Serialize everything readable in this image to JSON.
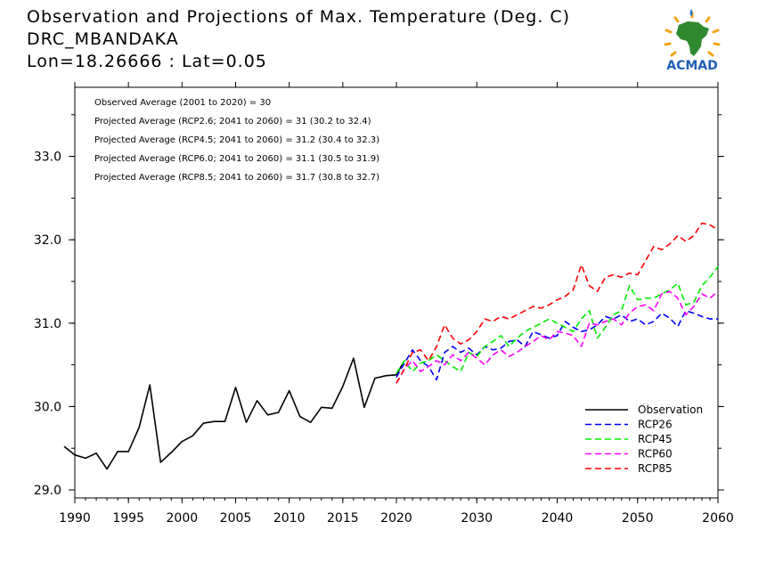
{
  "header": {
    "title": "Observation and Projections of Max. Temperature (Deg. C)",
    "station": "DRC_MBANDAKA",
    "coords": "Lon=18.26666 : Lat=0.05"
  },
  "logo": {
    "text": "ACMAD",
    "icon": "africa-map-icon"
  },
  "colors": {
    "observation": "#000000",
    "rcp26": "#0000ff",
    "rcp45": "#00ee00",
    "rcp60": "#ff00ff",
    "rcp85": "#ff0000"
  },
  "chart_data": {
    "type": "line",
    "annotations": [
      "Observed Average (2001 to 2020) = 30",
      "Projected Average (RCP2.6; 2041 to 2060) = 31 (30.2 to 32.4)",
      "Projected Average (RCP4.5; 2041 to 2060) = 31.2 (30.4 to 32.3)",
      "Projected Average (RCP6.0; 2041 to 2060) = 31.1 (30.5 to 31.9)",
      "Projected Average (RCP8.5; 2041 to 2060) = 31.7 (30.8 to 32.7)"
    ],
    "xlim": [
      1989,
      2060
    ],
    "ylim": [
      28.9,
      33.8
    ],
    "x_tick_labels": [
      "1990",
      "1995",
      "2000",
      "2005",
      "2010",
      "2015",
      "2020",
      "2030",
      "2040",
      "2050",
      "2060"
    ],
    "y_tick_labels": [
      "29.0",
      "30.0",
      "31.0",
      "32.0",
      "33.0"
    ],
    "legend_position": "bottom-right",
    "series": [
      {
        "name": "Observation",
        "style": "solid",
        "color": "#000000",
        "x": [
          1989,
          1990,
          1991,
          1992,
          1993,
          1994,
          1995,
          1996,
          1997,
          1998,
          1999,
          2000,
          2001,
          2002,
          2003,
          2004,
          2005,
          2006,
          2007,
          2008,
          2009,
          2010,
          2011,
          2012,
          2013,
          2014,
          2015,
          2016,
          2017,
          2018,
          2019,
          2020,
          2021
        ],
        "y": [
          29.52,
          29.42,
          29.38,
          29.44,
          29.25,
          29.46,
          29.46,
          29.75,
          30.26,
          29.33,
          29.45,
          29.58,
          29.65,
          29.8,
          29.82,
          29.82,
          30.23,
          29.81,
          30.07,
          29.9,
          29.93,
          30.19,
          29.88,
          29.81,
          29.99,
          29.98,
          30.24,
          30.58,
          29.99,
          30.34,
          30.37,
          30.38,
          30.55
        ]
      },
      {
        "name": "RCP26",
        "style": "dashed",
        "color": "#0000ff",
        "x": [
          2020,
          2021,
          2022,
          2023,
          2024,
          2025,
          2026,
          2027,
          2028,
          2029,
          2030,
          2031,
          2032,
          2033,
          2034,
          2035,
          2036,
          2037,
          2038,
          2039,
          2040,
          2041,
          2042,
          2043,
          2044,
          2045,
          2046,
          2047,
          2048,
          2049,
          2050,
          2051,
          2052,
          2053,
          2054,
          2055,
          2056,
          2057,
          2058,
          2059,
          2060
        ],
        "y": [
          30.35,
          30.52,
          30.68,
          30.55,
          30.48,
          30.32,
          30.65,
          30.72,
          30.65,
          30.7,
          30.62,
          30.72,
          30.68,
          30.7,
          30.78,
          30.8,
          30.72,
          30.9,
          30.86,
          30.82,
          30.85,
          31.02,
          30.95,
          30.9,
          30.92,
          30.98,
          31.08,
          31.05,
          31.1,
          31.02,
          31.05,
          30.98,
          31.02,
          31.12,
          31.06,
          30.96,
          31.15,
          31.12,
          31.08,
          31.05,
          31.05
        ]
      },
      {
        "name": "RCP45",
        "style": "dashed",
        "color": "#00ee00",
        "x": [
          2020,
          2021,
          2022,
          2023,
          2024,
          2025,
          2026,
          2027,
          2028,
          2029,
          2030,
          2031,
          2032,
          2033,
          2034,
          2035,
          2036,
          2037,
          2038,
          2039,
          2040,
          2041,
          2042,
          2043,
          2044,
          2045,
          2046,
          2047,
          2048,
          2049,
          2050,
          2051,
          2052,
          2053,
          2054,
          2055,
          2056,
          2057,
          2058,
          2059,
          2060
        ],
        "y": [
          30.4,
          30.55,
          30.42,
          30.52,
          30.55,
          30.62,
          30.55,
          30.48,
          30.42,
          30.65,
          30.6,
          30.72,
          30.78,
          30.85,
          30.72,
          30.82,
          30.9,
          30.95,
          31.0,
          31.05,
          31.0,
          30.95,
          30.9,
          31.05,
          31.15,
          30.82,
          30.95,
          31.1,
          31.15,
          31.45,
          31.28,
          31.3,
          31.3,
          31.35,
          31.4,
          31.48,
          31.22,
          31.25,
          31.45,
          31.55,
          31.68
        ]
      },
      {
        "name": "RCP60",
        "style": "dashed",
        "color": "#ff00ff",
        "x": [
          2020,
          2021,
          2022,
          2023,
          2024,
          2025,
          2026,
          2027,
          2028,
          2029,
          2030,
          2031,
          2032,
          2033,
          2034,
          2035,
          2036,
          2037,
          2038,
          2039,
          2040,
          2041,
          2042,
          2043,
          2044,
          2045,
          2046,
          2047,
          2048,
          2049,
          2050,
          2051,
          2052,
          2053,
          2054,
          2055,
          2056,
          2057,
          2058,
          2059,
          2060
        ],
        "y": [
          30.28,
          30.45,
          30.55,
          30.42,
          30.48,
          30.55,
          30.5,
          30.62,
          30.55,
          30.65,
          30.58,
          30.5,
          30.62,
          30.68,
          30.6,
          30.65,
          30.72,
          30.78,
          30.85,
          30.8,
          30.9,
          30.88,
          30.85,
          30.72,
          31.0,
          30.98,
          31.02,
          31.05,
          30.98,
          31.12,
          31.2,
          31.22,
          31.15,
          31.35,
          31.38,
          31.3,
          31.1,
          31.2,
          31.35,
          31.3,
          31.38
        ]
      },
      {
        "name": "RCP85",
        "style": "dashed",
        "color": "#ff0000",
        "x": [
          2020,
          2021,
          2022,
          2023,
          2024,
          2025,
          2026,
          2027,
          2028,
          2029,
          2030,
          2031,
          2032,
          2033,
          2034,
          2035,
          2036,
          2037,
          2038,
          2039,
          2040,
          2041,
          2042,
          2043,
          2044,
          2045,
          2046,
          2047,
          2048,
          2049,
          2050,
          2051,
          2052,
          2053,
          2054,
          2055,
          2056,
          2057,
          2058,
          2059,
          2060
        ],
        "y": [
          30.28,
          30.45,
          30.65,
          30.68,
          30.55,
          30.72,
          30.98,
          30.82,
          30.75,
          30.8,
          30.9,
          31.05,
          31.02,
          31.08,
          31.05,
          31.1,
          31.15,
          31.2,
          31.18,
          31.22,
          31.28,
          31.32,
          31.4,
          31.7,
          31.45,
          31.38,
          31.55,
          31.58,
          31.55,
          31.6,
          31.58,
          31.75,
          31.92,
          31.88,
          31.95,
          32.05,
          31.98,
          32.05,
          32.2,
          32.18,
          32.12
        ]
      }
    ]
  }
}
